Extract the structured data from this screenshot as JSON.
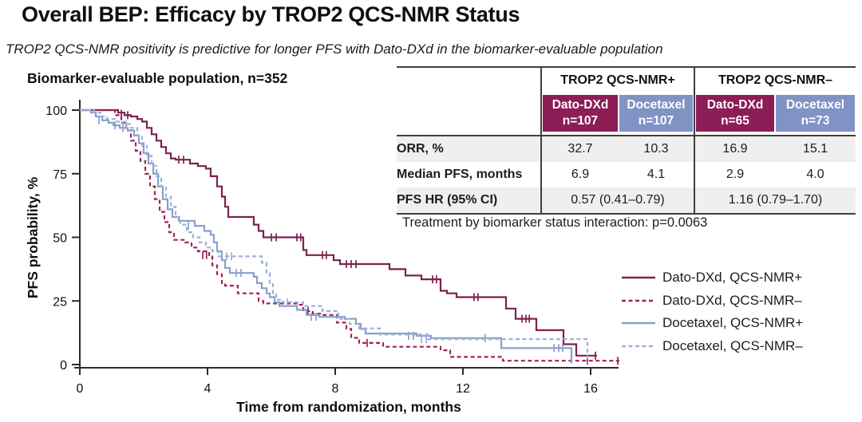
{
  "title": "Overall BEP: Efficacy by TROP2 QCS-NMR Status",
  "subtitle": "TROP2 QCS-NMR positivity is predictive for longer PFS with Dato-DXd in the biomarker-evaluable population",
  "chart_heading": "Biomarker-evaluable population, n=352",
  "colors": {
    "row_shade": "#EFEFEF",
    "border_dark": "#3F3F3F",
    "axis": "#2B2B2B",
    "dato_header_bg": "#8C1D56",
    "docetaxel_header_bg": "#8192C4"
  },
  "table": {
    "group_headers": [
      "TROP2 QCS-NMR+",
      "TROP2 QCS-NMR–"
    ],
    "arms": [
      {
        "label": "Dato-DXd",
        "n": "n=107",
        "bg": "#8C1D56"
      },
      {
        "label": "Docetaxel",
        "n": "n=107",
        "bg": "#8192C4"
      },
      {
        "label": "Dato-DXd",
        "n": "n=65",
        "bg": "#8C1D56"
      },
      {
        "label": "Docetaxel",
        "n": "n=73",
        "bg": "#8192C4"
      }
    ],
    "rows": [
      {
        "label": "ORR, %",
        "values": [
          "32.7",
          "10.3",
          "16.9",
          "15.1"
        ]
      },
      {
        "label": "Median PFS, months",
        "values": [
          "6.9",
          "4.1",
          "2.9",
          "4.0"
        ]
      },
      {
        "label": "PFS HR (95% CI)",
        "values": [
          "0.57 (0.41–0.79)",
          "1.16 (0.79–1.70)"
        ]
      }
    ],
    "footnote": "Treatment by biomarker status interaction: p=0.0063"
  },
  "chart_data": {
    "type": "line",
    "subtype": "kaplan-meier-step",
    "title": "Biomarker-evaluable population, n=352",
    "xlabel": "Time from randomization, months",
    "ylabel": "PFS probability, %",
    "xlim": [
      0,
      17
    ],
    "ylim": [
      0,
      100
    ],
    "xticks": [
      0,
      4,
      8,
      12,
      16
    ],
    "yticks": [
      0,
      25,
      50,
      75,
      100
    ],
    "grid": false,
    "legend_position": "right-bottom",
    "series": [
      {
        "name": "Dato-DXd, QCS-NMR+",
        "color": "#7C2150",
        "dash": null,
        "steps": [
          [
            0,
            100
          ],
          [
            1.05,
            100
          ],
          [
            1.2,
            99
          ],
          [
            1.4,
            98
          ],
          [
            1.6,
            97.5
          ],
          [
            1.8,
            96.5
          ],
          [
            1.95,
            95.5
          ],
          [
            2.1,
            93
          ],
          [
            2.25,
            90.5
          ],
          [
            2.4,
            88
          ],
          [
            2.55,
            85.5
          ],
          [
            2.7,
            83
          ],
          [
            2.85,
            81
          ],
          [
            3.0,
            80.5
          ],
          [
            3.45,
            79
          ],
          [
            3.7,
            78
          ],
          [
            3.95,
            77
          ],
          [
            4.1,
            74
          ],
          [
            4.3,
            70
          ],
          [
            4.45,
            66
          ],
          [
            4.55,
            62
          ],
          [
            4.65,
            58
          ],
          [
            5.45,
            55
          ],
          [
            5.6,
            52.5
          ],
          [
            5.75,
            50
          ],
          [
            7.0,
            45
          ],
          [
            7.1,
            43
          ],
          [
            7.95,
            41
          ],
          [
            8.15,
            39.5
          ],
          [
            9.7,
            37.5
          ],
          [
            10.2,
            35
          ],
          [
            10.7,
            33.5
          ],
          [
            11.3,
            29
          ],
          [
            11.5,
            28
          ],
          [
            11.8,
            26.5
          ],
          [
            13.35,
            22
          ],
          [
            13.65,
            18
          ],
          [
            14.3,
            13.5
          ],
          [
            15.15,
            8
          ],
          [
            15.55,
            3.5
          ],
          [
            16.2,
            3.5
          ]
        ],
        "censors": [
          [
            1.3,
            98.6
          ],
          [
            1.5,
            98
          ],
          [
            3.1,
            80.5
          ],
          [
            3.25,
            80.5
          ],
          [
            6.0,
            50
          ],
          [
            6.15,
            50
          ],
          [
            6.8,
            50
          ],
          [
            6.92,
            50
          ],
          [
            7.6,
            43
          ],
          [
            7.72,
            43
          ],
          [
            8.35,
            39.5
          ],
          [
            8.5,
            39.5
          ],
          [
            8.65,
            39.5
          ],
          [
            11.05,
            33.5
          ],
          [
            11.17,
            33.5
          ],
          [
            12.35,
            26.5
          ],
          [
            12.47,
            26.5
          ],
          [
            13.85,
            18
          ],
          [
            13.97,
            18
          ],
          [
            14.08,
            18
          ],
          [
            16.15,
            3.5
          ]
        ]
      },
      {
        "name": "Dato-DXd, QCS-NMR–",
        "color": "#A02458",
        "dash": "5,3.5",
        "steps": [
          [
            0,
            100
          ],
          [
            0.95,
            100
          ],
          [
            1.1,
            98
          ],
          [
            1.3,
            95
          ],
          [
            1.45,
            92
          ],
          [
            1.6,
            88
          ],
          [
            1.75,
            84
          ],
          [
            1.9,
            80
          ],
          [
            2.05,
            75
          ],
          [
            2.2,
            70
          ],
          [
            2.35,
            65
          ],
          [
            2.5,
            60
          ],
          [
            2.65,
            56
          ],
          [
            2.8,
            52
          ],
          [
            2.95,
            49
          ],
          [
            3.3,
            48
          ],
          [
            3.5,
            46
          ],
          [
            3.7,
            44.5
          ],
          [
            4.05,
            43
          ],
          [
            4.15,
            39
          ],
          [
            4.3,
            35.5
          ],
          [
            4.45,
            32
          ],
          [
            4.55,
            31
          ],
          [
            4.95,
            28
          ],
          [
            5.6,
            25
          ],
          [
            5.75,
            24
          ],
          [
            6.85,
            23.5
          ],
          [
            7.0,
            21
          ],
          [
            7.3,
            20
          ],
          [
            7.6,
            19.5
          ],
          [
            8.05,
            16.5
          ],
          [
            8.35,
            14
          ],
          [
            8.5,
            10.5
          ],
          [
            8.75,
            8.5
          ],
          [
            9.5,
            7
          ],
          [
            11.3,
            5.6
          ],
          [
            11.6,
            3
          ],
          [
            13.1,
            3
          ],
          [
            13.25,
            1.5
          ],
          [
            16.9,
            1.5
          ]
        ],
        "censors": [
          [
            3.85,
            43
          ],
          [
            3.97,
            43
          ],
          [
            7.15,
            21
          ],
          [
            9.0,
            8.5
          ],
          [
            15.9,
            1.5
          ],
          [
            16.85,
            1.5
          ]
        ]
      },
      {
        "name": "Docetaxel, QCS-NMR+",
        "color": "#8A9FCA",
        "dash": null,
        "steps": [
          [
            0,
            100
          ],
          [
            0.35,
            99
          ],
          [
            0.5,
            97.5
          ],
          [
            0.7,
            96
          ],
          [
            0.9,
            95
          ],
          [
            1.05,
            94
          ],
          [
            1.25,
            93
          ],
          [
            1.5,
            92
          ],
          [
            1.7,
            90
          ],
          [
            1.85,
            87
          ],
          [
            2.0,
            83
          ],
          [
            2.15,
            79
          ],
          [
            2.3,
            75
          ],
          [
            2.45,
            70
          ],
          [
            2.6,
            65
          ],
          [
            2.75,
            61
          ],
          [
            2.9,
            58
          ],
          [
            3.1,
            56.5
          ],
          [
            3.6,
            54.5
          ],
          [
            3.9,
            52.5
          ],
          [
            4.1,
            51
          ],
          [
            4.2,
            48
          ],
          [
            4.3,
            44.5
          ],
          [
            4.45,
            41
          ],
          [
            4.55,
            38
          ],
          [
            4.7,
            36
          ],
          [
            5.45,
            34.5
          ],
          [
            5.55,
            32
          ],
          [
            5.7,
            30
          ],
          [
            5.85,
            28
          ],
          [
            5.95,
            26.5
          ],
          [
            6.1,
            24.5
          ],
          [
            6.25,
            23
          ],
          [
            6.8,
            21.5
          ],
          [
            7.1,
            19.5
          ],
          [
            7.5,
            18.75
          ],
          [
            8.3,
            18
          ],
          [
            8.65,
            16
          ],
          [
            8.8,
            14
          ],
          [
            8.95,
            12.2
          ],
          [
            10.55,
            11.3
          ],
          [
            11.0,
            10.4
          ],
          [
            13.1,
            10.4
          ],
          [
            13.2,
            6.5
          ],
          [
            15.35,
            6.5
          ],
          [
            15.4,
            0.5
          ]
        ],
        "censors": [
          [
            0.6,
            96
          ],
          [
            1.1,
            94
          ],
          [
            1.35,
            93
          ],
          [
            3.4,
            54.5
          ],
          [
            4.9,
            36
          ],
          [
            5.05,
            36
          ],
          [
            7.25,
            18.75
          ],
          [
            7.4,
            18.75
          ],
          [
            10.3,
            11.3
          ],
          [
            10.45,
            11.3
          ],
          [
            12.7,
            10.4
          ],
          [
            14.85,
            6.5
          ],
          [
            15.0,
            6.5
          ],
          [
            15.12,
            6.5
          ]
        ]
      },
      {
        "name": "Docetaxel, QCS-NMR–",
        "color": "#9DB0D8",
        "dash": "5,3.5",
        "steps": [
          [
            0,
            100
          ],
          [
            0.45,
            99
          ],
          [
            0.65,
            97.5
          ],
          [
            0.85,
            96.5
          ],
          [
            1.1,
            95.5
          ],
          [
            1.35,
            94.5
          ],
          [
            1.6,
            93
          ],
          [
            1.8,
            90
          ],
          [
            1.95,
            86
          ],
          [
            2.1,
            82
          ],
          [
            2.25,
            78
          ],
          [
            2.4,
            74
          ],
          [
            2.55,
            70
          ],
          [
            2.7,
            66
          ],
          [
            2.85,
            62
          ],
          [
            3.0,
            58
          ],
          [
            3.15,
            55
          ],
          [
            3.35,
            52
          ],
          [
            3.55,
            50
          ],
          [
            3.75,
            48
          ],
          [
            3.95,
            46
          ],
          [
            4.15,
            44.5
          ],
          [
            4.35,
            42.5
          ],
          [
            5.7,
            40
          ],
          [
            5.85,
            36
          ],
          [
            5.95,
            32
          ],
          [
            6.05,
            28
          ],
          [
            6.15,
            25.5
          ],
          [
            6.35,
            24.5
          ],
          [
            7.0,
            23
          ],
          [
            7.6,
            21
          ],
          [
            8.1,
            18
          ],
          [
            8.45,
            16
          ],
          [
            8.75,
            14.2
          ],
          [
            9.4,
            11.8
          ],
          [
            10.9,
            10
          ],
          [
            15.85,
            10
          ],
          [
            15.9,
            0.5
          ]
        ],
        "censors": [
          [
            1.45,
            94.5
          ],
          [
            4.6,
            42.5
          ],
          [
            4.75,
            42.5
          ],
          [
            6.5,
            24.5
          ],
          [
            10.7,
            10
          ],
          [
            10.85,
            10
          ]
        ]
      }
    ]
  }
}
